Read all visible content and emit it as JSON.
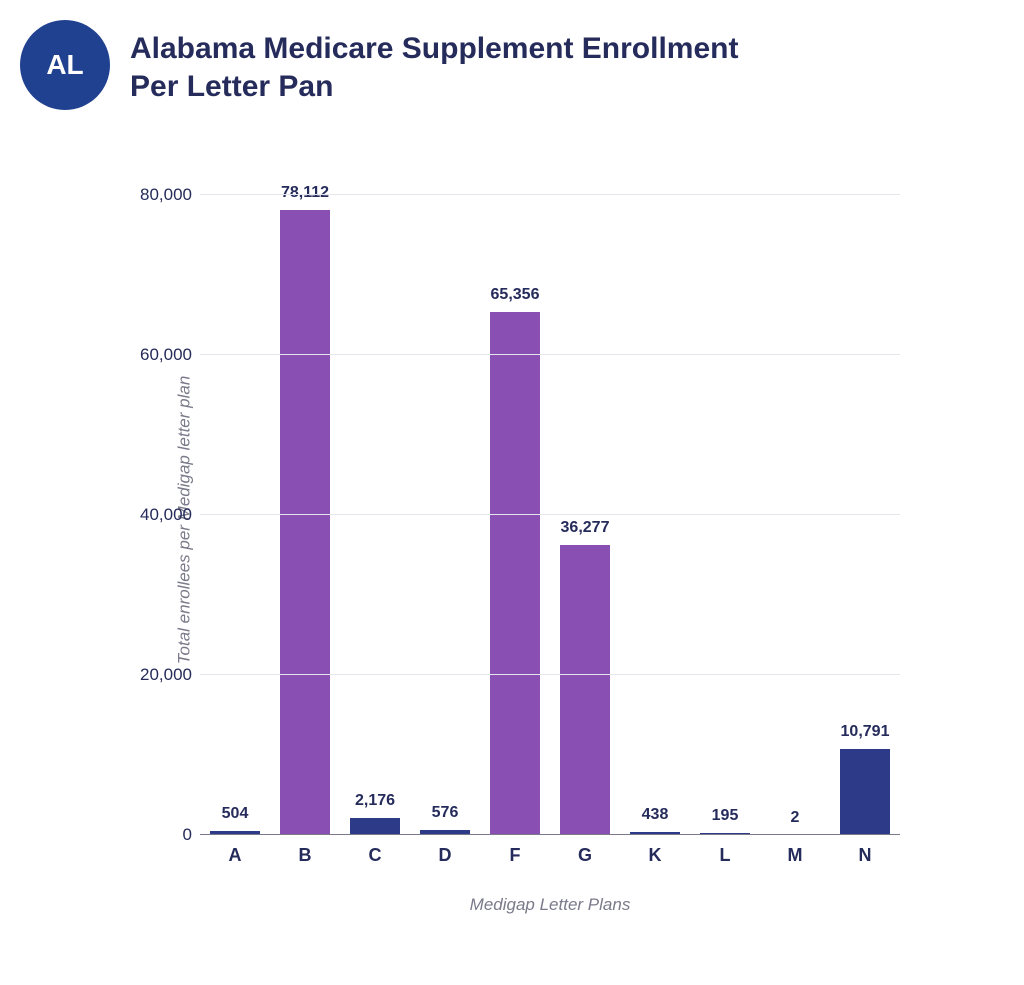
{
  "badge": {
    "text": "AL",
    "bg_color": "#20418f",
    "text_color": "#ffffff"
  },
  "title": {
    "line1": "Alabama Medicare Supplement Enrollment",
    "line2": "Per Letter Pan",
    "color": "#252b5a"
  },
  "chart": {
    "type": "bar",
    "ylabel": "Total enrollees per Medigap letter plan",
    "xlabel": "Medigap Letter Plans",
    "ylim": [
      0,
      80000
    ],
    "ytick_step": 20000,
    "yticks": [
      {
        "value": 0,
        "label": "0"
      },
      {
        "value": 20000,
        "label": "20,000"
      },
      {
        "value": 40000,
        "label": "40,000"
      },
      {
        "value": 60000,
        "label": "60,000"
      },
      {
        "value": 80000,
        "label": "80,000"
      }
    ],
    "grid_color": "#e5e5ec",
    "baseline_color": "#7a7a8a",
    "background_color": "#ffffff",
    "tick_label_color": "#252b5a",
    "value_label_color": "#252b5a",
    "axis_label_color": "#7a7a8a",
    "bar_width": 0.72,
    "colors": {
      "purple": "#8a4fb3",
      "navy": "#2d3a87"
    },
    "bars": [
      {
        "category": "A",
        "value": 504,
        "label": "504",
        "color": "#2d3a87"
      },
      {
        "category": "B",
        "value": 78112,
        "label": "78,112",
        "color": "#8a4fb3"
      },
      {
        "category": "C",
        "value": 2176,
        "label": "2,176",
        "color": "#2d3a87"
      },
      {
        "category": "D",
        "value": 576,
        "label": "576",
        "color": "#2d3a87"
      },
      {
        "category": "F",
        "value": 65356,
        "label": "65,356",
        "color": "#8a4fb3"
      },
      {
        "category": "G",
        "value": 36277,
        "label": "36,277",
        "color": "#8a4fb3"
      },
      {
        "category": "K",
        "value": 438,
        "label": "438",
        "color": "#2d3a87"
      },
      {
        "category": "L",
        "value": 195,
        "label": "195",
        "color": "#2d3a87"
      },
      {
        "category": "M",
        "value": 2,
        "label": "2",
        "color": "#2d3a87"
      },
      {
        "category": "N",
        "value": 10791,
        "label": "10,791",
        "color": "#2d3a87"
      }
    ]
  }
}
